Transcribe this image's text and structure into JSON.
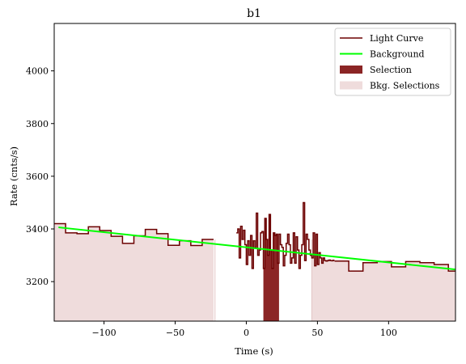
{
  "chart_data": {
    "type": "line",
    "title": "b1",
    "xlabel": "Time (s)",
    "ylabel": "Rate (cnts/s)",
    "xlim": [
      -135,
      147
    ],
    "ylim": [
      3050,
      4180
    ],
    "xticks": [
      -100,
      -50,
      0,
      50,
      100
    ],
    "yticks": [
      3200,
      3400,
      3600,
      3800,
      4000
    ],
    "legend_position": "top-right",
    "colors": {
      "light_curve": "#6b0000",
      "background": "#00ff00",
      "selection": "#8b2525",
      "bkg_selection": "#efdcdc"
    },
    "legend": [
      {
        "key": "light_curve",
        "label": "Light Curve",
        "kind": "line"
      },
      {
        "key": "background",
        "label": "Background",
        "kind": "line"
      },
      {
        "key": "selection",
        "label": "Selection",
        "kind": "patch"
      },
      {
        "key": "bkg_selection",
        "label": "Bkg. Selections",
        "kind": "patch"
      }
    ],
    "light_curve_wide": {
      "x": [
        -135,
        -127,
        -119,
        -111,
        -103,
        -95,
        -87,
        -79,
        -71,
        -63,
        -55,
        -47,
        -39,
        -31
      ],
      "y": [
        3420,
        3385,
        3382,
        3408,
        3394,
        3372,
        3345,
        3374,
        3398,
        3382,
        3338,
        3355,
        3337,
        3360
      ],
      "x_end": -23
    },
    "light_curve_fine": {
      "x": [
        -7,
        -6,
        -5,
        -4,
        -3,
        -2,
        -1,
        0,
        1,
        2,
        3,
        4,
        5,
        6,
        7,
        8,
        9,
        10,
        11,
        12,
        13,
        14,
        15,
        16,
        17,
        18,
        19,
        20,
        21,
        22,
        23,
        24,
        25,
        26,
        27,
        28,
        29,
        30,
        31,
        32,
        33,
        34,
        35,
        36,
        37,
        38,
        39,
        40,
        41,
        42,
        43,
        44,
        45,
        46,
        47,
        48,
        49,
        50,
        51,
        52,
        53,
        54,
        55,
        56,
        57,
        58,
        59,
        60,
        61
      ],
      "y": [
        3385,
        3400,
        3290,
        3410,
        3360,
        3395,
        3340,
        3265,
        3355,
        3300,
        3375,
        3250,
        3355,
        3330,
        3460,
        3300,
        3320,
        3385,
        3390,
        3250,
        3440,
        3360,
        3300,
        3455,
        3320,
        3250,
        3385,
        3375,
        3380,
        3270,
        3380,
        3340,
        3330,
        3260,
        3300,
        3345,
        3380,
        3340,
        3270,
        3290,
        3385,
        3270,
        3370,
        3320,
        3250,
        3300,
        3340,
        3500,
        3280,
        3380,
        3360,
        3320,
        3300,
        3290,
        3385,
        3260,
        3380,
        3265,
        3310,
        3290,
        3270,
        3290,
        3280,
        3278,
        3280,
        3282,
        3280,
        3279,
        3281
      ],
      "x_end": 62
    },
    "light_curve_tail": {
      "x": [
        62,
        72,
        82,
        92,
        102,
        112,
        122,
        132,
        142
      ],
      "y": [
        3278,
        3240,
        3272,
        3276,
        3256,
        3276,
        3272,
        3265,
        3240
      ],
      "x_end": 147
    },
    "background_line": {
      "x": [
        -132,
        147
      ],
      "y": [
        3406,
        3246
      ]
    },
    "selection": {
      "x_start": 12,
      "x_end": 23
    },
    "bkg_selections": [
      {
        "x_start": -135,
        "x_end": -22
      },
      {
        "x_start": 46,
        "x_end": 147
      }
    ]
  }
}
